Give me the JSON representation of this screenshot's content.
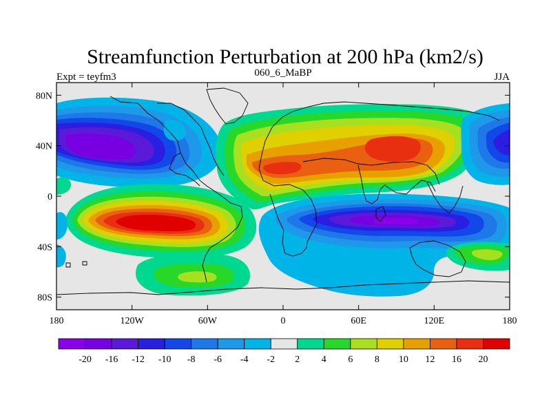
{
  "chart_data": {
    "type": "heatmap",
    "title": "Streamfunction Perturbation at 200 hPa (km2/s)",
    "left_label": "Expt = teyfm3",
    "center_label": "060_6_MaBP",
    "right_label": "JJA",
    "x_ticks": [
      {
        "value": -180,
        "label": "180"
      },
      {
        "value": -120,
        "label": "120W"
      },
      {
        "value": -60,
        "label": "60W"
      },
      {
        "value": 0,
        "label": "0"
      },
      {
        "value": 60,
        "label": "60E"
      },
      {
        "value": 120,
        "label": "120E"
      },
      {
        "value": 180,
        "label": "180"
      }
    ],
    "y_ticks": [
      {
        "value": 80,
        "label": "80N"
      },
      {
        "value": 40,
        "label": "40N"
      },
      {
        "value": 0,
        "label": "0"
      },
      {
        "value": -40,
        "label": "40S"
      },
      {
        "value": -80,
        "label": "80S"
      }
    ],
    "xlim": [
      -180,
      180
    ],
    "ylim": [
      -90,
      90
    ],
    "colorbar": {
      "colors": [
        "#8a00e8",
        "#7800e0",
        "#5a1ad8",
        "#2a1ee0",
        "#1248e8",
        "#1e78e8",
        "#1e98e8",
        "#00b4e8",
        "#e6e6e6",
        "#00d890",
        "#28d828",
        "#a8e020",
        "#e0d000",
        "#e8a000",
        "#e86010",
        "#e83010",
        "#e00000"
      ],
      "labels": [
        "-20",
        "-16",
        "-12",
        "-10",
        "-8",
        "-6",
        "-4",
        "-2",
        "2",
        "4",
        "6",
        "8",
        "10",
        "12",
        "16",
        "20"
      ]
    },
    "features": [
      {
        "name": "north-pacific-low",
        "lon": -140,
        "lat": 35,
        "value": -18
      },
      {
        "name": "south-pacific-high",
        "lon": -85,
        "lat": -20,
        "value": 20
      },
      {
        "name": "southern-ocean-ridge",
        "lon": -75,
        "lat": -62,
        "value": 6
      },
      {
        "name": "eurasia-high",
        "lon": 85,
        "lat": 40,
        "value": 16
      },
      {
        "name": "africa-high",
        "lon": -5,
        "lat": 22,
        "value": 14
      },
      {
        "name": "indian-ocean-low",
        "lon": 75,
        "lat": -20,
        "value": -20
      },
      {
        "name": "west-pacific-low",
        "lon": 175,
        "lat": 40,
        "value": -10
      },
      {
        "name": "southwest-pacific-ridge",
        "lon": 157,
        "lat": -46,
        "value": 8
      }
    ]
  }
}
